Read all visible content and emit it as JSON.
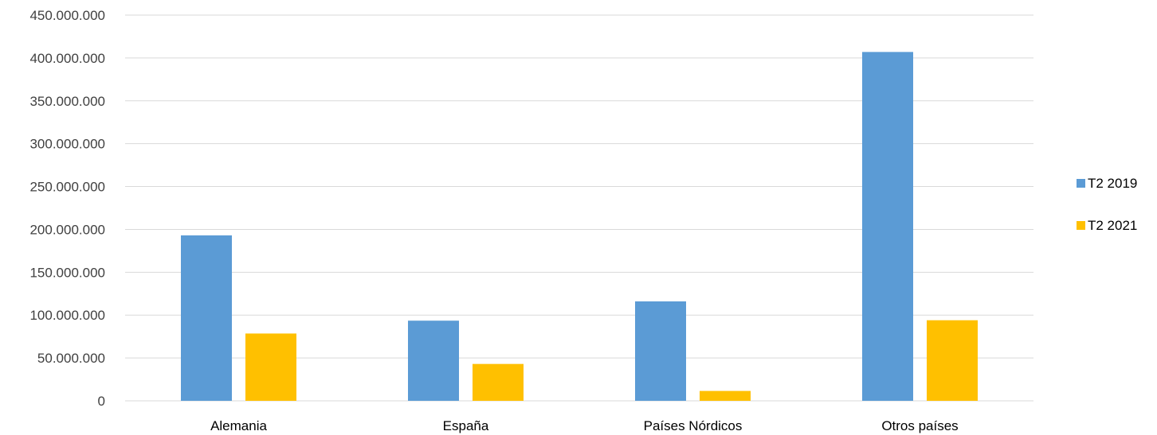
{
  "chart_data": {
    "type": "bar",
    "categories": [
      "Alemania",
      "España",
      "Países Nórdicos",
      "Otros países"
    ],
    "series": [
      {
        "name": "T2 2019",
        "color": "#5b9bd5",
        "values": [
          193000000,
          93500000,
          116000000,
          407000000
        ]
      },
      {
        "name": "T2 2021",
        "color": "#ffc000",
        "values": [
          78500000,
          43000000,
          11500000,
          94000000
        ]
      }
    ],
    "title": "",
    "xlabel": "",
    "ylabel": "",
    "ylim": [
      0,
      450000000
    ],
    "yticks": [
      0,
      50000000,
      100000000,
      150000000,
      200000000,
      250000000,
      300000000,
      350000000,
      400000000,
      450000000
    ],
    "ytick_labels": [
      "0",
      "50.000.000",
      "100.000.000",
      "150.000.000",
      "200.000.000",
      "250.000.000",
      "300.000.000",
      "350.000.000",
      "400.000.000",
      "450.000.000"
    ],
    "grid": true,
    "legend_position": "right"
  }
}
